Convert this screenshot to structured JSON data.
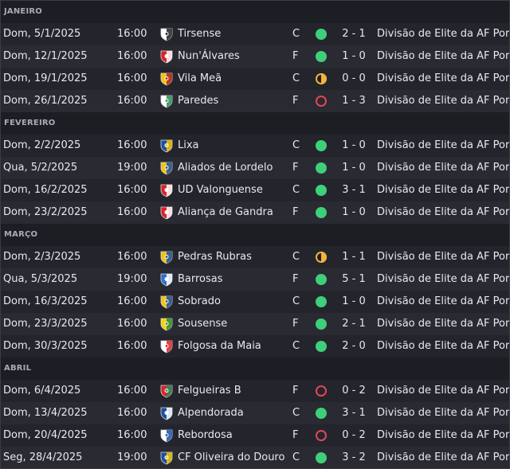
{
  "months": [
    {
      "label": "JANEIRO",
      "fixtures": [
        {
          "date": "Dom, 5/1/2025",
          "time": "16:00",
          "opponent": "Tirsense",
          "crest": "tirsense-crest-icon",
          "crest_colors": [
            "#ffffff",
            "#222222"
          ],
          "venue": "C",
          "result": "win",
          "score": "2 - 1",
          "competition": "Divisão de Elite da AF Porto"
        },
        {
          "date": "Dom, 12/1/2025",
          "time": "16:00",
          "opponent": "Nun'Álvares",
          "crest": "nunalvares-crest-icon",
          "crest_colors": [
            "#d8232a",
            "#ffffff"
          ],
          "venue": "F",
          "result": "win",
          "score": "1 - 0",
          "competition": "Divisão de Elite da AF Porto"
        },
        {
          "date": "Dom, 19/1/2025",
          "time": "16:00",
          "opponent": "Vila Meã",
          "crest": "vila-mea-crest-icon",
          "crest_colors": [
            "#f2c40c",
            "#b0202a"
          ],
          "venue": "C",
          "result": "draw",
          "score": "0 - 0",
          "competition": "Divisão de Elite da AF Porto"
        },
        {
          "date": "Dom, 26/1/2025",
          "time": "16:00",
          "opponent": "Paredes",
          "crest": "paredes-crest-icon",
          "crest_colors": [
            "#ffffff",
            "#2e8b57"
          ],
          "venue": "F",
          "result": "loss",
          "score": "1 - 3",
          "competition": "Divisão de Elite da AF Porto"
        }
      ]
    },
    {
      "label": "FEVEREIRO",
      "fixtures": [
        {
          "date": "Dom, 2/2/2025",
          "time": "16:00",
          "opponent": "Lixa",
          "crest": "lixa-crest-icon",
          "crest_colors": [
            "#1e50a0",
            "#f2c40c"
          ],
          "venue": "C",
          "result": "win",
          "score": "1 - 0",
          "competition": "Divisão de Elite da AF Porto"
        },
        {
          "date": "Qua, 5/2/2025",
          "time": "19:00",
          "opponent": "Aliados de Lordelo",
          "crest": "aliados-lordelo-crest-icon",
          "crest_colors": [
            "#f2c40c",
            "#1e50a0"
          ],
          "venue": "F",
          "result": "win",
          "score": "1 - 0",
          "competition": "Divisão de Elite da AF Porto"
        },
        {
          "date": "Dom, 16/2/2025",
          "time": "16:00",
          "opponent": "UD Valonguense",
          "crest": "ud-valonguense-crest-icon",
          "crest_colors": [
            "#d8232a",
            "#ffffff"
          ],
          "venue": "C",
          "result": "win",
          "score": "3 - 1",
          "competition": "Divisão de Elite da AF Porto"
        },
        {
          "date": "Dom, 23/2/2025",
          "time": "16:00",
          "opponent": "Aliança de Gandra",
          "crest": "alianca-gandra-crest-icon",
          "crest_colors": [
            "#d8232a",
            "#ffffff"
          ],
          "venue": "F",
          "result": "win",
          "score": "1 - 0",
          "competition": "Divisão de Elite da AF Porto"
        }
      ]
    },
    {
      "label": "MARÇO",
      "fixtures": [
        {
          "date": "Dom, 2/3/2025",
          "time": "16:00",
          "opponent": "Pedras Rubras",
          "crest": "pedras-rubras-crest-icon",
          "crest_colors": [
            "#f2c40c",
            "#1e50a0"
          ],
          "venue": "C",
          "result": "draw",
          "score": "1 - 1",
          "competition": "Divisão de Elite da AF Porto"
        },
        {
          "date": "Qua, 5/3/2025",
          "time": "19:00",
          "opponent": "Barrosas",
          "crest": "barrosas-crest-icon",
          "crest_colors": [
            "#2f6fd0",
            "#ffffff"
          ],
          "venue": "F",
          "result": "win",
          "score": "5 - 1",
          "competition": "Divisão de Elite da AF Porto"
        },
        {
          "date": "Dom, 16/3/2025",
          "time": "16:00",
          "opponent": "Sobrado",
          "crest": "sobrado-crest-icon",
          "crest_colors": [
            "#f2c40c",
            "#1e50a0"
          ],
          "venue": "C",
          "result": "win",
          "score": "1 - 0",
          "competition": "Divisão de Elite da AF Porto"
        },
        {
          "date": "Dom, 23/3/2025",
          "time": "16:00",
          "opponent": "Sousense",
          "crest": "sousense-crest-icon",
          "crest_colors": [
            "#f2d40c",
            "#2e8b3a"
          ],
          "venue": "F",
          "result": "win",
          "score": "2 - 1",
          "competition": "Divisão de Elite da AF Porto"
        },
        {
          "date": "Dom, 30/3/2025",
          "time": "16:00",
          "opponent": "Folgosa da Maia",
          "crest": "folgosa-maia-crest-icon",
          "crest_colors": [
            "#ffffff",
            "#d8232a"
          ],
          "venue": "C",
          "result": "win",
          "score": "2 - 0",
          "competition": "Divisão de Elite da AF Porto"
        }
      ]
    },
    {
      "label": "ABRIL",
      "fixtures": [
        {
          "date": "Dom, 6/4/2025",
          "time": "16:00",
          "opponent": "Felgueiras B",
          "crest": "felgueiras-b-crest-icon",
          "crest_colors": [
            "#d8232a",
            "#2e8b57"
          ],
          "venue": "F",
          "result": "loss",
          "score": "0 - 2",
          "competition": "Divisão de Elite da AF Porto"
        },
        {
          "date": "Dom, 13/4/2025",
          "time": "16:00",
          "opponent": "Alpendorada",
          "crest": "alpendorada-crest-icon",
          "crest_colors": [
            "#1e50a0",
            "#ffffff"
          ],
          "venue": "C",
          "result": "win",
          "score": "3 - 1",
          "competition": "Divisão de Elite da AF Porto"
        },
        {
          "date": "Dom, 20/4/2025",
          "time": "16:00",
          "opponent": "Rebordosa",
          "crest": "rebordosa-crest-icon",
          "crest_colors": [
            "#ffffff",
            "#1e50a0"
          ],
          "venue": "F",
          "result": "loss",
          "score": "0 - 2",
          "competition": "Divisão de Elite da AF Porto"
        },
        {
          "date": "Seg, 28/4/2025",
          "time": "19:00",
          "opponent": "CF Oliveira do Douro",
          "crest": "cf-oliveira-douro-crest-icon",
          "crest_colors": [
            "#1e50a0",
            "#f2c40c"
          ],
          "venue": "C",
          "result": "win",
          "score": "3 - 2",
          "competition": "Divisão de Elite da AF Porto"
        }
      ]
    }
  ],
  "colors": {
    "win": "#3ecf7a",
    "draw": "#f0b43a",
    "loss": "#e0465a",
    "row": "#24252c",
    "row_alt": "#292a32",
    "month_header": "#1d1e24"
  }
}
